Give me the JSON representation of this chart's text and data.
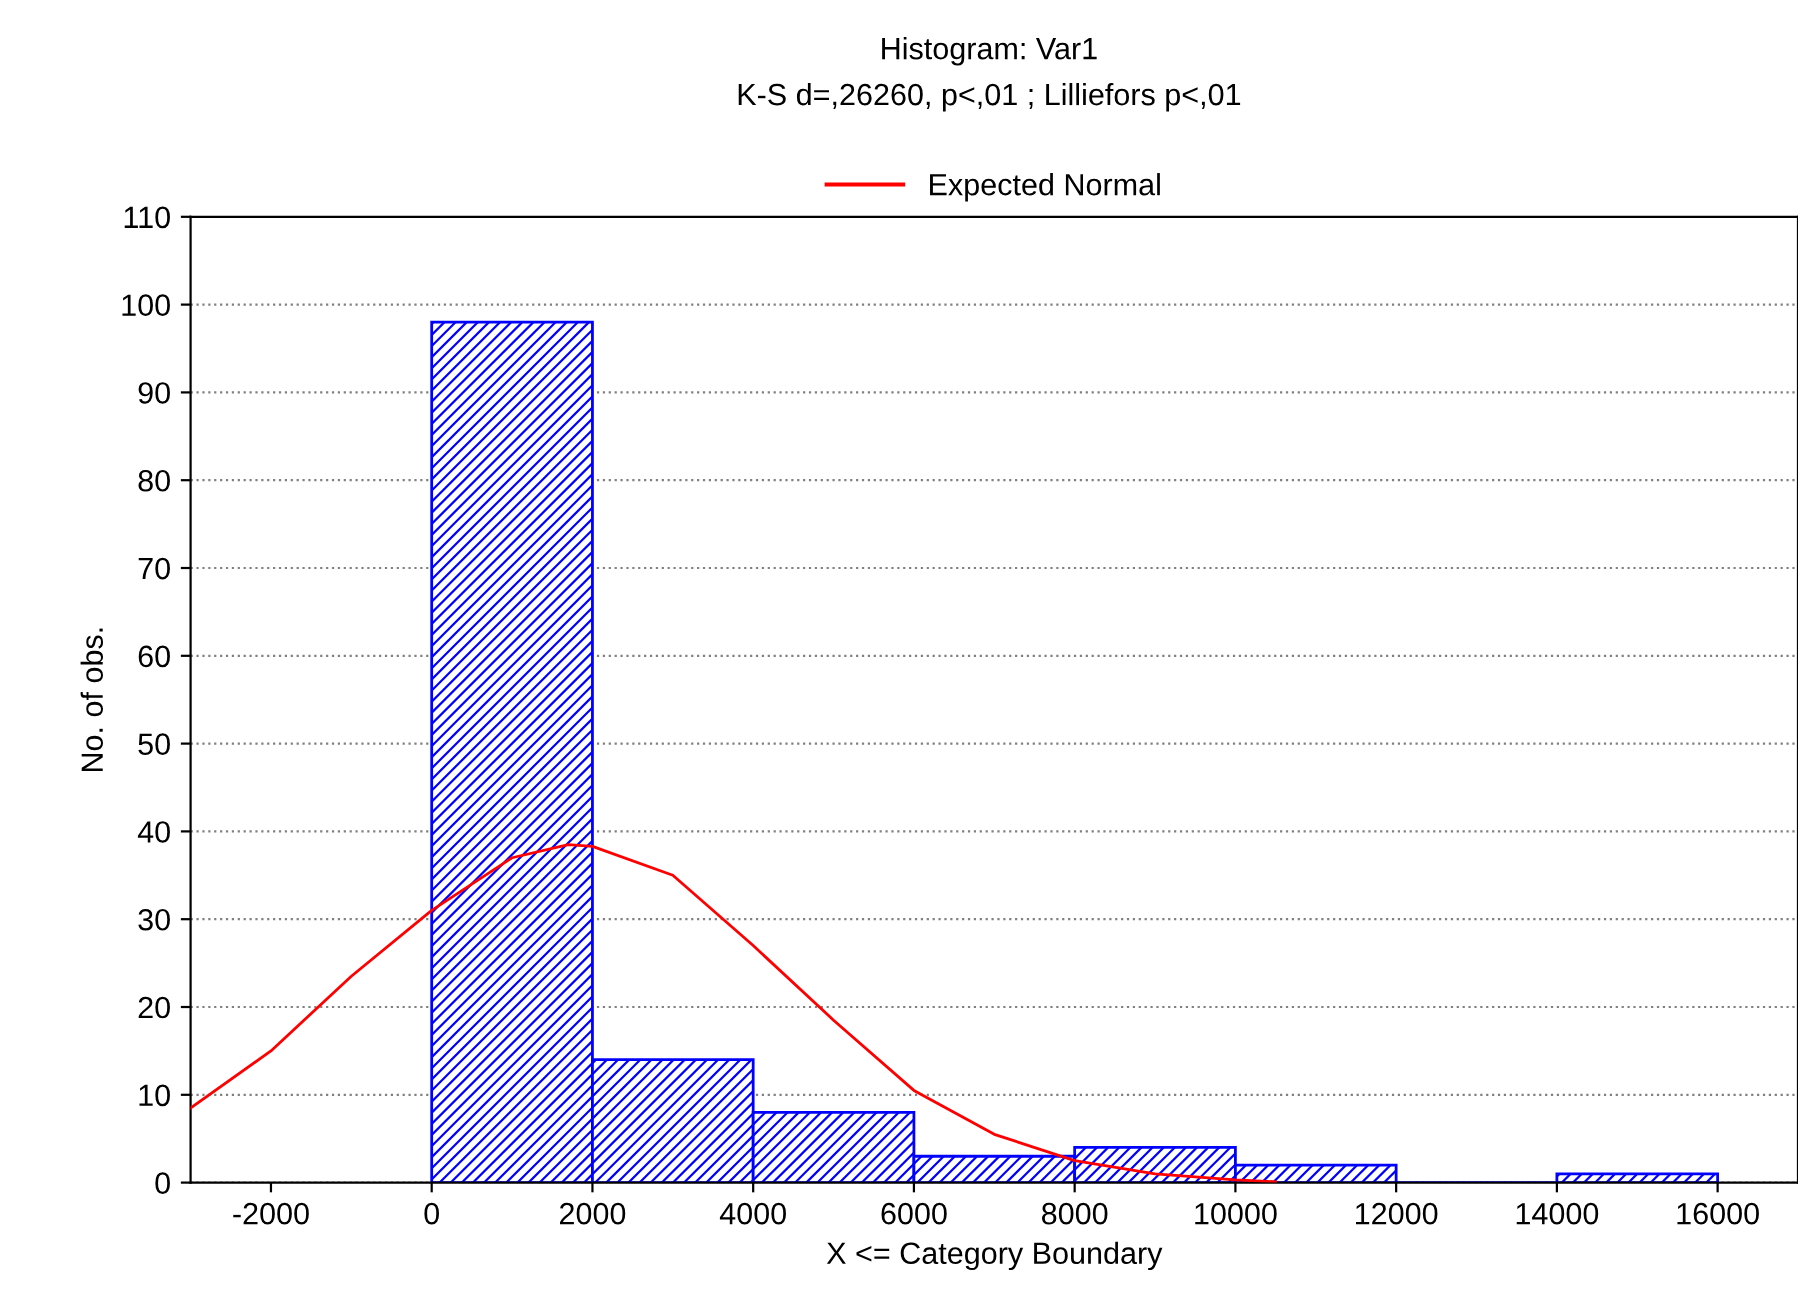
{
  "chart_data": {
    "type": "histogram",
    "title": "Histogram: Var1",
    "subtitle": "K-S d=,26260, p<,01 ; Lilliefors p<,01",
    "xlabel": "X <= Category Boundary",
    "ylabel": "No. of obs.",
    "bins": [
      0,
      2000,
      4000,
      6000,
      8000,
      10000,
      12000,
      14000,
      16000
    ],
    "values": [
      98,
      14,
      8,
      3,
      4,
      2,
      0,
      1
    ],
    "color": "#0000ff",
    "series": [
      {
        "type": "line",
        "name": "Expected Normal",
        "color": "#ff0000",
        "x": [
          -3000,
          -2000,
          -1000,
          0,
          1000,
          1700,
          2000,
          3000,
          4000,
          5000,
          6000,
          7000,
          8000,
          9000,
          10000,
          10500
        ],
        "values": [
          8.5,
          15,
          23.5,
          31,
          37,
          38.5,
          38.3,
          35,
          27,
          18.5,
          10.5,
          5.5,
          2.5,
          1,
          0.3,
          0.1
        ]
      }
    ],
    "xlim": [
      -3000,
      17000
    ],
    "xticks": [
      -2000,
      0,
      2000,
      4000,
      6000,
      8000,
      10000,
      12000,
      14000,
      16000
    ],
    "ylim": [
      0,
      110
    ],
    "yticks": [
      0,
      10,
      20,
      30,
      40,
      50,
      60,
      70,
      80,
      90,
      100,
      110
    ],
    "grid": "y",
    "legend": "top",
    "line_style": "solid",
    "marker": "none"
  }
}
